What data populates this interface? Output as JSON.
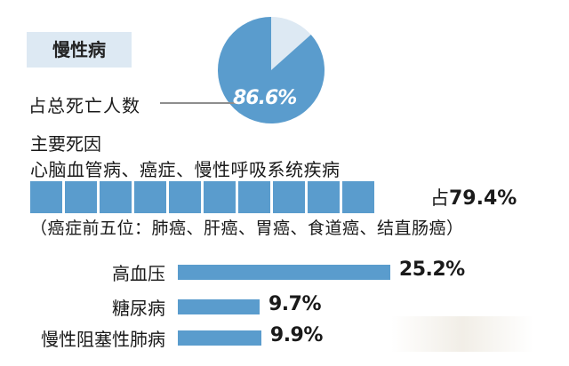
{
  "category_title": "慢性病",
  "pie": {
    "label": "占总死亡人数",
    "value_text": "86.6%",
    "percent": 86.6,
    "colors": {
      "fill": "#5a9ccd",
      "rest": "#dde9f3"
    }
  },
  "causes": {
    "heading": "主要死因",
    "list": "心脑血管病、癌症、慢性呼吸系统疾病",
    "share_prefix": "占",
    "share_value": "79.4%",
    "share_percent": 79.4,
    "block_count": 10,
    "top5_note": "（癌症前五位：肺癌、肝癌、胃癌、食道癌、结直肠癌）"
  },
  "chart_data": {
    "type": "bar",
    "orientation": "horizontal",
    "categories": [
      "高血压",
      "糖尿病",
      "慢性阻塞性肺病"
    ],
    "values": [
      25.2,
      9.7,
      9.9
    ],
    "value_labels": [
      "25.2%",
      "9.7%",
      "9.9%"
    ],
    "xlim": [
      0,
      27
    ],
    "title": "",
    "xlabel": "",
    "ylabel": ""
  },
  "colors": {
    "accent": "#5a9ccd",
    "title_bg": "#dde9f3"
  }
}
